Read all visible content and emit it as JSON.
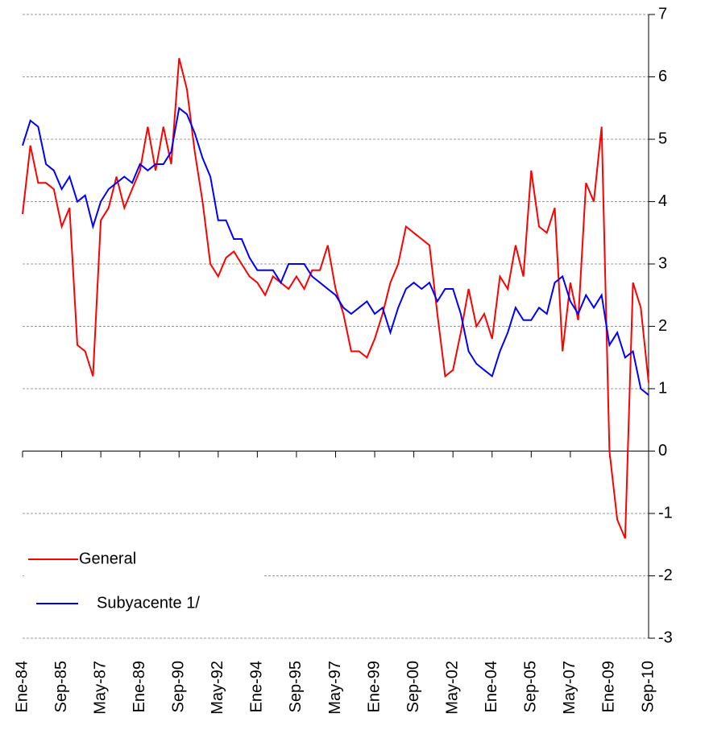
{
  "chart_data": {
    "type": "line",
    "categories": [
      "Ene-84",
      null,
      null,
      null,
      null,
      "Sep-85",
      null,
      null,
      null,
      null,
      "May-87",
      null,
      null,
      null,
      null,
      "Ene-89",
      null,
      null,
      null,
      null,
      "Sep-90",
      null,
      null,
      null,
      null,
      "May-92",
      null,
      null,
      null,
      null,
      "Ene-94",
      null,
      null,
      null,
      null,
      "Sep-95",
      null,
      null,
      null,
      null,
      "May-97",
      null,
      null,
      null,
      null,
      "Ene-99",
      null,
      null,
      null,
      null,
      "Sep-00",
      null,
      null,
      null,
      null,
      "May-02",
      null,
      null,
      null,
      null,
      "Ene-04",
      null,
      null,
      null,
      null,
      "Sep-05",
      null,
      null,
      null,
      null,
      "May-07",
      null,
      null,
      null,
      null,
      "Ene-09",
      null,
      null,
      null,
      null,
      "Sep-10"
    ],
    "series": [
      {
        "name": "General",
        "color": "#ff0000",
        "values": [
          3.8,
          4.9,
          4.3,
          4.3,
          4.2,
          3.6,
          3.9,
          1.7,
          1.6,
          1.2,
          3.7,
          3.9,
          4.4,
          3.9,
          4.2,
          4.5,
          5.2,
          4.5,
          5.2,
          4.6,
          6.3,
          5.8,
          4.8,
          4.0,
          3.0,
          2.8,
          3.1,
          3.2,
          3.0,
          2.8,
          2.7,
          2.5,
          2.8,
          2.7,
          2.6,
          2.8,
          2.6,
          2.9,
          2.9,
          3.3,
          2.6,
          2.2,
          1.6,
          1.6,
          1.5,
          1.8,
          2.2,
          2.7,
          3.0,
          3.6,
          3.5,
          3.4,
          3.3,
          2.2,
          1.2,
          1.3,
          1.9,
          2.6,
          2.0,
          2.2,
          1.8,
          2.8,
          2.6,
          3.3,
          2.8,
          4.5,
          3.6,
          3.5,
          3.9,
          1.6,
          2.7,
          2.1,
          4.3,
          4.0,
          5.2,
          0.0,
          -1.1,
          -1.4,
          2.7,
          2.3,
          1.1
        ]
      },
      {
        "name": "Subyacente 1/",
        "color": "#0000ff",
        "values": [
          4.9,
          5.3,
          5.2,
          4.6,
          4.5,
          4.2,
          4.4,
          4.0,
          4.1,
          3.6,
          4.0,
          4.2,
          4.3,
          4.4,
          4.3,
          4.6,
          4.5,
          4.6,
          4.6,
          4.8,
          5.5,
          5.4,
          5.1,
          4.7,
          4.4,
          3.7,
          3.7,
          3.4,
          3.4,
          3.1,
          2.9,
          2.9,
          2.9,
          2.7,
          3.0,
          3.0,
          3.0,
          2.8,
          2.7,
          2.6,
          2.5,
          2.3,
          2.2,
          2.3,
          2.4,
          2.2,
          2.3,
          1.9,
          2.3,
          2.6,
          2.7,
          2.6,
          2.7,
          2.4,
          2.6,
          2.6,
          2.2,
          1.6,
          1.4,
          1.3,
          1.2,
          1.6,
          1.9,
          2.3,
          2.1,
          2.1,
          2.3,
          2.2,
          2.7,
          2.8,
          2.4,
          2.2,
          2.5,
          2.3,
          2.5,
          1.7,
          1.9,
          1.5,
          1.6,
          1.0,
          0.9
        ]
      }
    ],
    "ylim": [
      -3,
      7
    ],
    "yticks": [
      -3,
      -2,
      -1,
      0,
      1,
      2,
      3,
      4,
      5,
      6,
      7
    ],
    "grid": true,
    "legend": "lower left"
  }
}
